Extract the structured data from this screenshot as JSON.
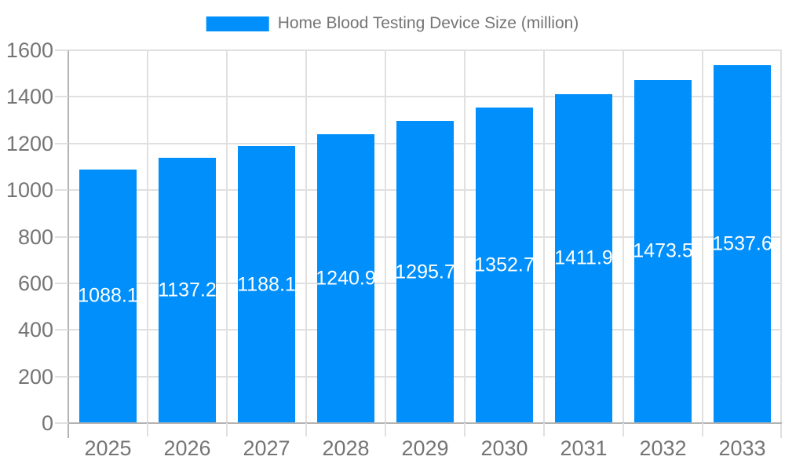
{
  "chart_data": {
    "type": "bar",
    "title": "Home Blood Testing Device Size (million)",
    "legend": {
      "label": "Home Blood Testing Device Size (million)",
      "position": "top"
    },
    "categories": [
      "2025",
      "2026",
      "2027",
      "2028",
      "2029",
      "2030",
      "2031",
      "2032",
      "2033"
    ],
    "series": [
      {
        "name": "Home Blood Testing Device Size (million)",
        "values": [
          1088.1,
          1137.2,
          1188.1,
          1240.9,
          1295.7,
          1352.7,
          1411.9,
          1473.5,
          1537.6
        ],
        "data_labels": [
          "1088.1",
          "1137.2",
          "1188.1",
          "1240.9",
          "1295.7",
          "1352.7",
          "1411.9",
          "1473.5",
          "1537.6"
        ]
      }
    ],
    "xlabel": "",
    "ylabel": "",
    "ylim": [
      0,
      1600
    ],
    "ytick_step": 200,
    "ytick_labels": [
      "0",
      "200",
      "400",
      "600",
      "800",
      "1000",
      "1200",
      "1400",
      "1600"
    ],
    "grid": true,
    "colors": {
      "bar": "#008FFB",
      "data_label_text": "#ffffff",
      "axis_text": "#757575",
      "legend_text": "#757575",
      "gridline": "#e0e0e0",
      "axis_line": "#b3b3b3",
      "background": "#ffffff"
    }
  }
}
